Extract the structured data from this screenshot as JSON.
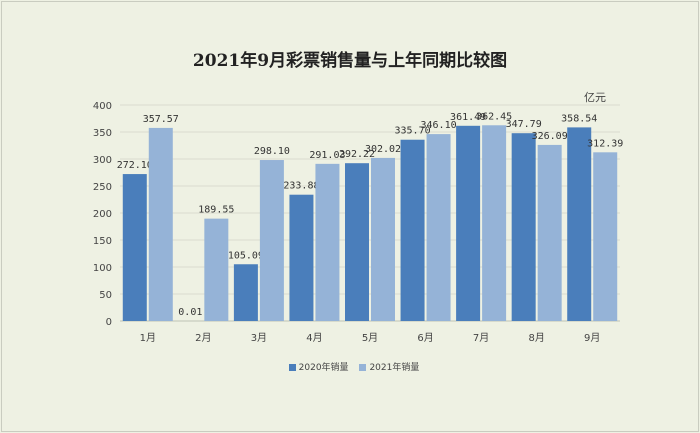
{
  "chart_data": {
    "type": "bar",
    "title": "2021年9月彩票销售量与上年同期比较图",
    "unit_label": "亿元",
    "xlabel": "",
    "ylabel": "",
    "ylim": [
      0,
      400
    ],
    "yticks": [
      0,
      50,
      100,
      150,
      200,
      250,
      300,
      350,
      400
    ],
    "grid": true,
    "legend_position": "bottom",
    "categories": [
      "1月",
      "2月",
      "3月",
      "4月",
      "5月",
      "6月",
      "7月",
      "8月",
      "9月"
    ],
    "series": [
      {
        "name": "2020年销量",
        "color": "#4a7ebb",
        "values": [
          272.1,
          0.01,
          105.09,
          233.88,
          292.22,
          335.7,
          361.49,
          347.79,
          358.54
        ],
        "labels": [
          "272.10",
          "0.01",
          "105.09",
          "233.88",
          "292.22",
          "335.70",
          "361.49",
          "347.79",
          "358.54"
        ]
      },
      {
        "name": "2021年销量",
        "color": "#95b3d7",
        "values": [
          357.57,
          189.55,
          298.1,
          291.03,
          302.02,
          346.1,
          362.45,
          326.09,
          312.39
        ],
        "labels": [
          "357.57",
          "189.55",
          "298.10",
          "291.03",
          "302.02",
          "346.10",
          "362.45",
          "326.09",
          "312.39"
        ]
      }
    ]
  }
}
